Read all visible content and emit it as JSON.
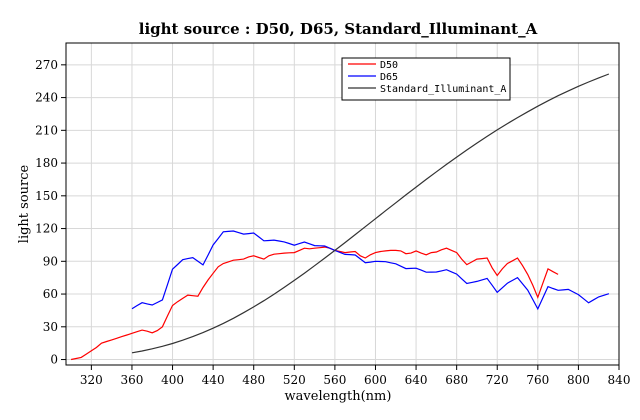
{
  "chart_data": {
    "type": "line",
    "title": "light source : D50, D65, Standard_Illuminant_A",
    "xlabel": "wavelength(nm)",
    "ylabel": "light source",
    "xlim": [
      295,
      840
    ],
    "ylim": [
      -5,
      290
    ],
    "xticks": [
      320,
      360,
      400,
      440,
      480,
      520,
      560,
      600,
      640,
      680,
      720,
      760,
      800,
      840
    ],
    "yticks": [
      0,
      30,
      60,
      90,
      120,
      150,
      180,
      210,
      240,
      270
    ],
    "grid": true,
    "legend": {
      "position": "top-right"
    },
    "series": [
      {
        "name": "D50",
        "color": "#ff0000",
        "x": [
          300,
          305,
          310,
          315,
          320,
          325,
          330,
          335,
          340,
          345,
          350,
          355,
          360,
          365,
          370,
          375,
          380,
          385,
          390,
          395,
          400,
          405,
          410,
          415,
          420,
          425,
          430,
          435,
          440,
          445,
          450,
          455,
          460,
          465,
          470,
          475,
          480,
          485,
          490,
          495,
          500,
          505,
          510,
          515,
          520,
          525,
          530,
          535,
          540,
          545,
          550,
          555,
          560,
          565,
          570,
          575,
          580,
          585,
          590,
          595,
          600,
          605,
          610,
          615,
          620,
          625,
          630,
          635,
          640,
          645,
          650,
          655,
          660,
          665,
          670,
          675,
          680,
          685,
          690,
          695,
          700,
          705,
          710,
          715,
          720,
          725,
          730,
          735,
          740,
          745,
          750,
          755,
          760,
          765,
          770,
          775,
          780
        ],
        "values": [
          0.0,
          1.0,
          2.0,
          5.0,
          8.0,
          11.0,
          15.0,
          16.5,
          18.0,
          19.5,
          21.0,
          22.5,
          24.0,
          25.5,
          27.0,
          26.0,
          24.5,
          26.5,
          30.0,
          40.0,
          49.5,
          53.0,
          56.0,
          59.0,
          58.5,
          58.0,
          66.0,
          73.0,
          79.0,
          85.0,
          88.0,
          89.5,
          91.0,
          91.5,
          92.0,
          94.0,
          95.0,
          93.5,
          92.0,
          95.0,
          96.5,
          97.0,
          97.5,
          97.8,
          98.0,
          100.0,
          102.0,
          101.5,
          102.0,
          102.5,
          103.0,
          102.0,
          100.0,
          99.0,
          98.0,
          98.5,
          99.0,
          95.0,
          93.0,
          96.0,
          98.0,
          99.0,
          99.5,
          100.0,
          100.0,
          99.5,
          97.0,
          97.5,
          99.5,
          97.5,
          96.0,
          98.0,
          98.5,
          100.5,
          102.0,
          100.0,
          98.0,
          92.0,
          87.0,
          89.5,
          92.0,
          92.5,
          93.0,
          84.0,
          77.0,
          83.0,
          88.0,
          90.5,
          93.0,
          86.0,
          78.0,
          68.0,
          57.0,
          70.0,
          83.0,
          80.5,
          78.0
        ]
      },
      {
        "name": "D65",
        "color": "#0000ff",
        "x": [
          360,
          365,
          370,
          375,
          380,
          385,
          390,
          395,
          400,
          405,
          410,
          415,
          420,
          425,
          430,
          435,
          440,
          445,
          450,
          455,
          460,
          465,
          470,
          475,
          480,
          485,
          490,
          495,
          500,
          505,
          510,
          515,
          520,
          525,
          530,
          535,
          540,
          545,
          550,
          555,
          560,
          565,
          570,
          575,
          580,
          585,
          590,
          595,
          600,
          605,
          610,
          615,
          620,
          625,
          630,
          635,
          640,
          645,
          650,
          655,
          660,
          665,
          670,
          675,
          680,
          685,
          690,
          695,
          700,
          705,
          710,
          715,
          720,
          725,
          730,
          735,
          740,
          745,
          750,
          755,
          760,
          765,
          770,
          775,
          780,
          785,
          790,
          795,
          800,
          805,
          810,
          815,
          820,
          825,
          830
        ],
        "values": [
          46.6,
          49.4,
          52.1,
          51.0,
          50.0,
          52.3,
          54.6,
          68.7,
          82.8,
          87.1,
          91.5,
          92.5,
          93.4,
          90.1,
          86.7,
          95.8,
          104.9,
          110.9,
          117.0,
          117.4,
          117.8,
          116.3,
          114.9,
          115.4,
          115.9,
          112.4,
          108.8,
          109.1,
          109.4,
          108.6,
          107.8,
          106.3,
          104.8,
          106.2,
          107.7,
          106.0,
          104.4,
          104.2,
          104.0,
          102.0,
          100.0,
          98.2,
          96.3,
          96.1,
          95.8,
          92.2,
          88.7,
          89.3,
          90.0,
          89.8,
          89.6,
          88.6,
          87.7,
          85.5,
          83.3,
          83.5,
          83.7,
          81.9,
          80.0,
          80.1,
          80.2,
          81.2,
          82.3,
          80.3,
          78.3,
          74.0,
          69.7,
          70.7,
          71.6,
          73.0,
          74.3,
          68.0,
          61.6,
          65.7,
          69.9,
          72.5,
          75.1,
          69.3,
          63.6,
          55.0,
          46.4,
          56.6,
          66.8,
          65.1,
          63.4,
          63.8,
          64.3,
          61.9,
          59.5,
          55.7,
          52.0,
          54.7,
          57.4,
          58.9,
          60.3
        ]
      },
      {
        "name": "Standard_Illuminant_A",
        "color": "#333333",
        "x": [
          360,
          370,
          380,
          390,
          400,
          410,
          420,
          430,
          440,
          450,
          460,
          470,
          480,
          490,
          500,
          510,
          520,
          530,
          540,
          550,
          560,
          570,
          580,
          590,
          600,
          610,
          620,
          630,
          640,
          650,
          660,
          670,
          680,
          690,
          700,
          710,
          720,
          730,
          740,
          750,
          760,
          770,
          780,
          790,
          800,
          810,
          820,
          830
        ],
        "values": [
          6.14,
          7.82,
          9.8,
          12.09,
          14.71,
          17.68,
          20.99,
          24.67,
          28.7,
          33.09,
          37.81,
          42.87,
          48.24,
          53.91,
          59.86,
          66.06,
          72.5,
          79.13,
          85.95,
          92.91,
          100.0,
          107.18,
          114.44,
          121.73,
          129.04,
          136.35,
          143.62,
          150.84,
          157.98,
          165.03,
          171.96,
          178.77,
          185.43,
          191.93,
          198.26,
          204.41,
          210.36,
          216.12,
          221.67,
          227.0,
          232.12,
          237.01,
          241.68,
          246.12,
          250.33,
          254.31,
          258.07,
          261.6
        ]
      }
    ]
  }
}
